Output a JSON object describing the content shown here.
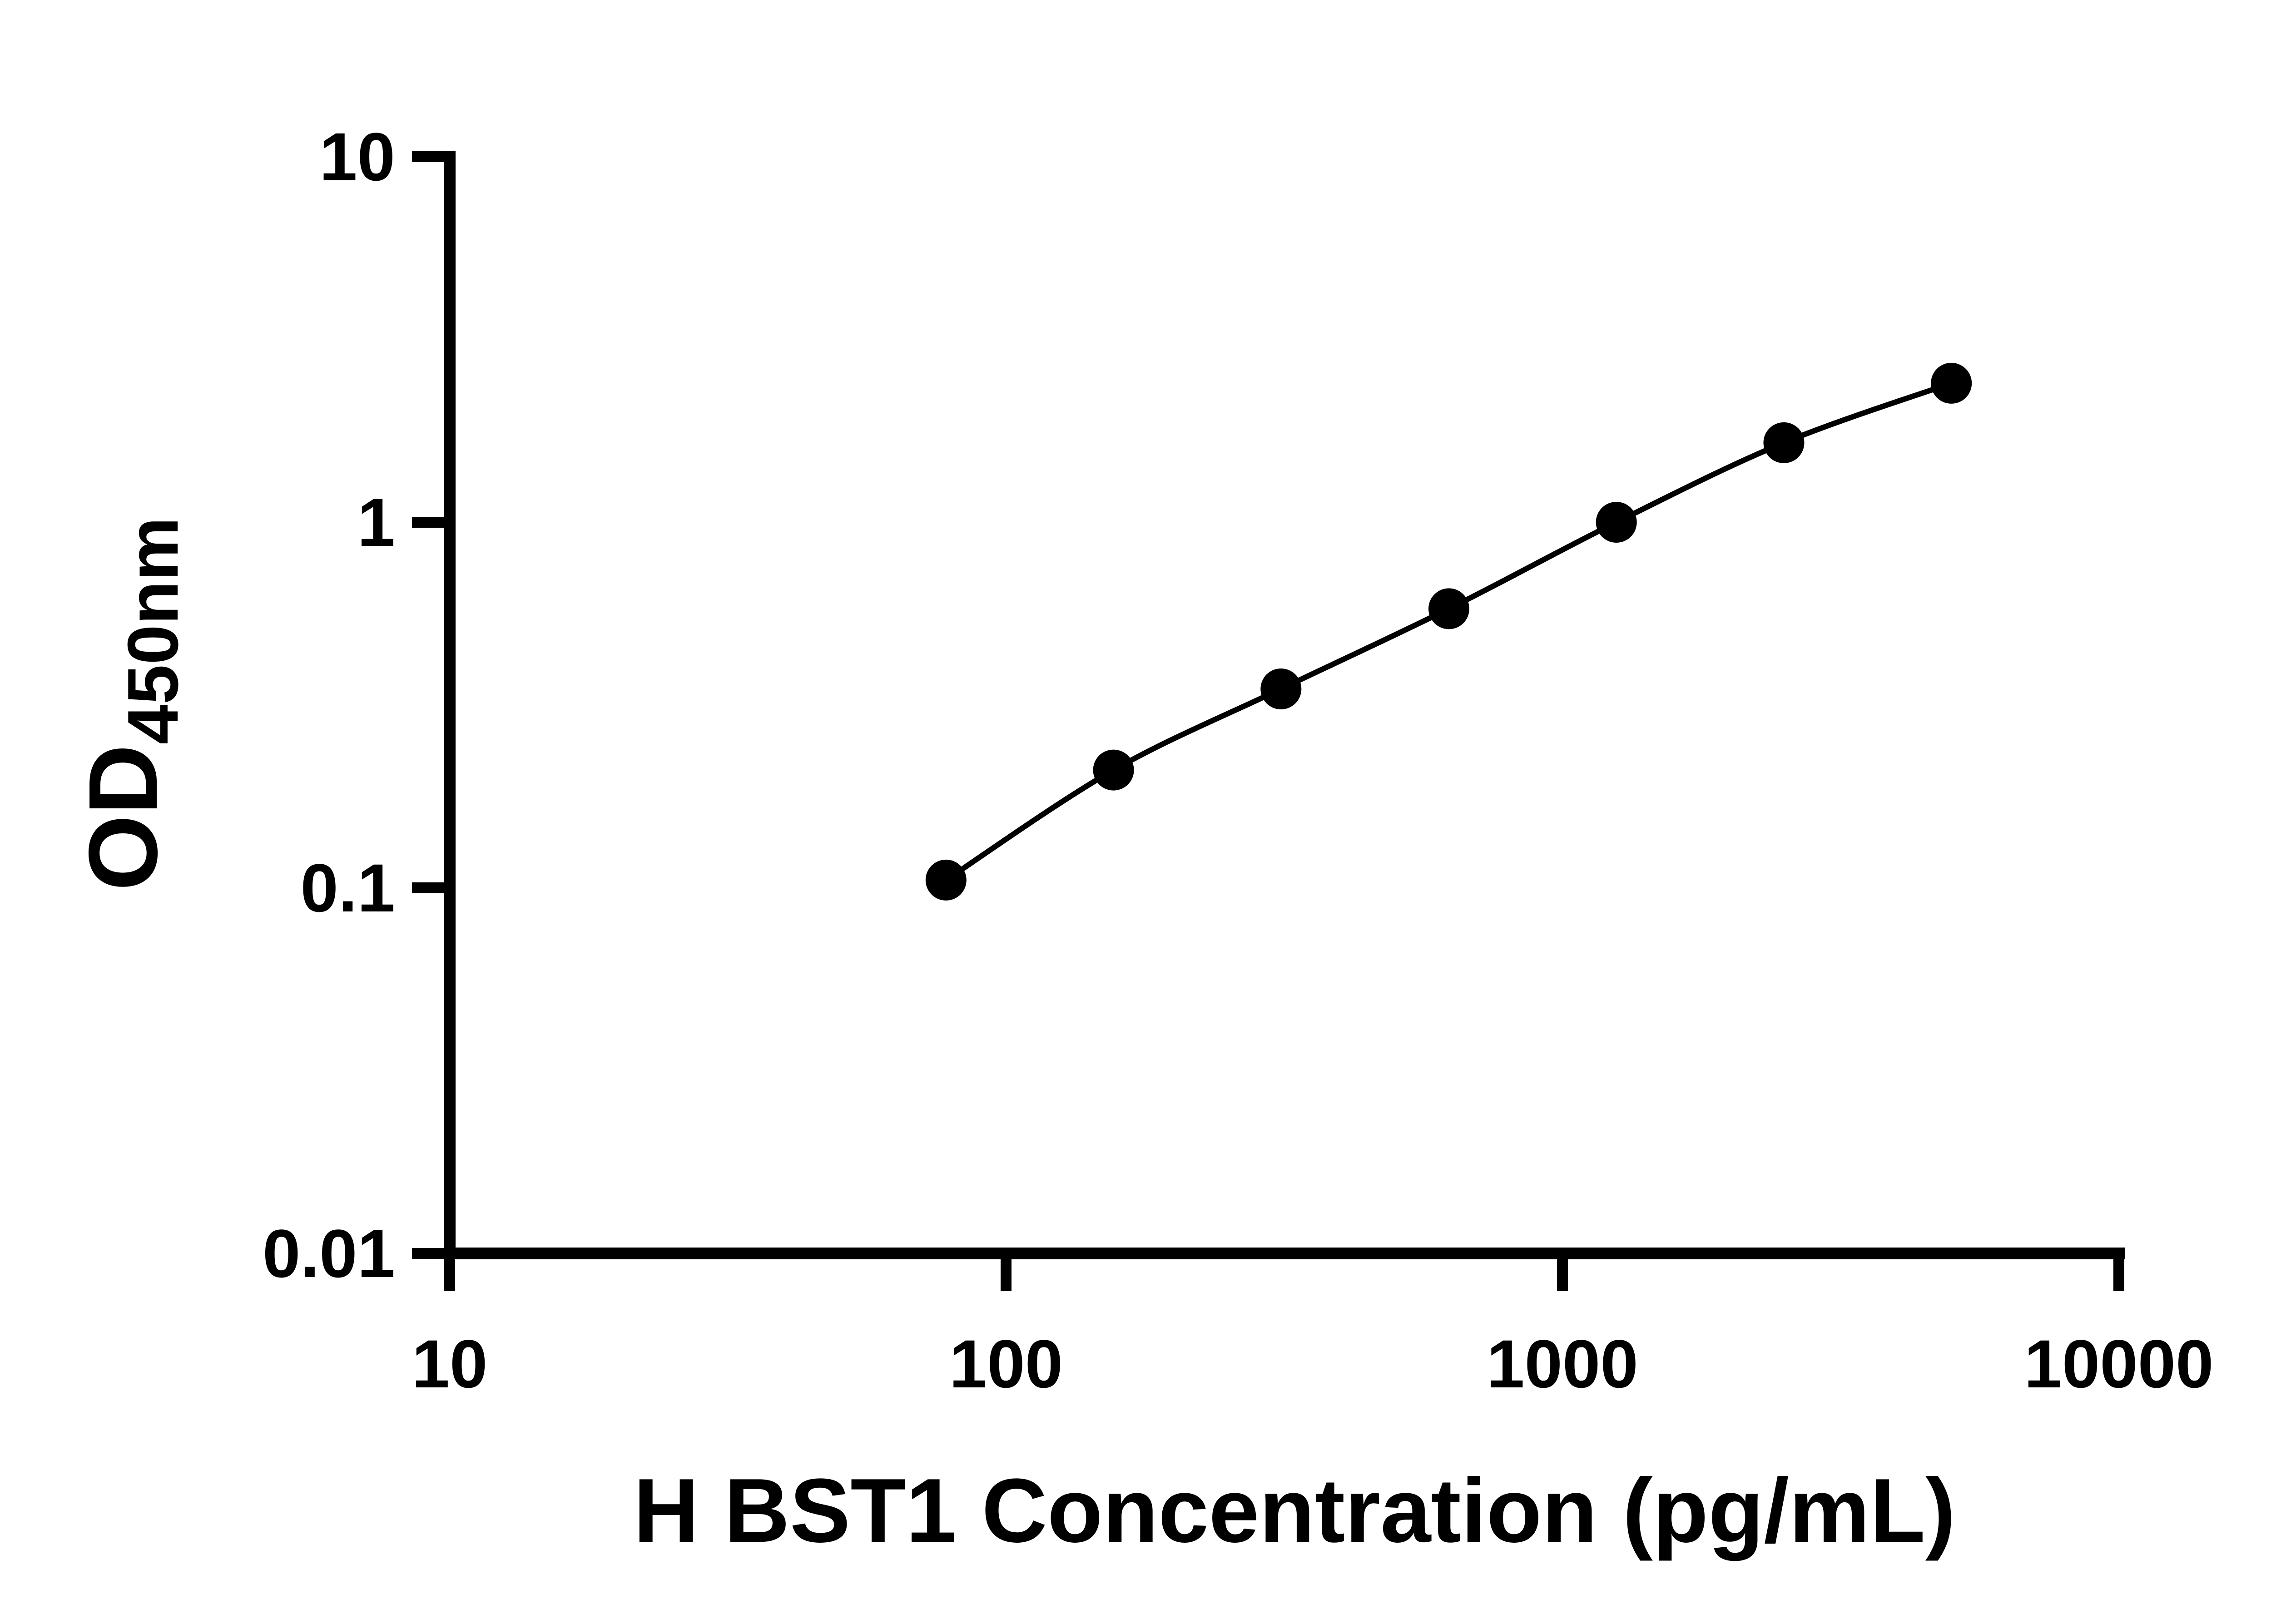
{
  "chart_data": {
    "type": "line",
    "x": [
      78,
      156,
      312,
      625,
      1250,
      2500,
      5000
    ],
    "y": [
      0.105,
      0.21,
      0.35,
      0.58,
      1.0,
      1.65,
      2.4
    ],
    "title": "",
    "xlabel": "H BST1 Concentration (pg/mL)",
    "ylabel": "OD450nm",
    "ylabel_main": "OD",
    "ylabel_sub": "450nm",
    "x_scale": "log",
    "y_scale": "log",
    "xlim": [
      10,
      10000
    ],
    "ylim": [
      0.01,
      10
    ],
    "x_ticks": [
      10,
      100,
      1000,
      10000
    ],
    "x_tick_labels": [
      "10",
      "100",
      "1000",
      "10000"
    ],
    "y_ticks": [
      0.01,
      0.1,
      1,
      10
    ],
    "y_tick_labels": [
      "0.01",
      "0.1",
      "1",
      "10"
    ],
    "grid": false,
    "legend": "none",
    "marker": "filled-circle",
    "axis_color": "#000000",
    "line_color": "#000000",
    "marker_color": "#000000",
    "background": "#ffffff"
  }
}
